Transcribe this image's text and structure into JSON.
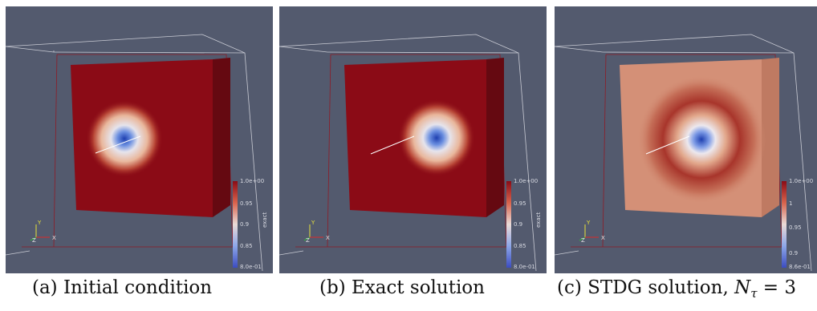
{
  "panels": [
    {
      "id": "a",
      "caption": "(a) Initial condition",
      "colorbar": {
        "max_label": "1.0e+00",
        "ticks": [
          "0.95",
          "0.9",
          "0.85"
        ],
        "min_label": "8.0e-01",
        "title": "exact"
      },
      "axes": {
        "y": "Y",
        "z": "Z",
        "x": "X"
      }
    },
    {
      "id": "b",
      "caption": "(b) Exact solution",
      "colorbar": {
        "max_label": "1.0e+00",
        "ticks": [
          "0.95",
          "0.9",
          "0.85"
        ],
        "min_label": "8.0e-01",
        "title": "exact"
      },
      "axes": {
        "y": "Y",
        "z": "Z",
        "x": "X"
      }
    },
    {
      "id": "c",
      "caption_prefix": "(c) STDG solution, ",
      "caption_symbol": "N",
      "caption_sub": "τ",
      "caption_suffix": " = 3",
      "colorbar": {
        "max_label": "1.0e+00",
        "ticks": [
          "1",
          "0.95",
          "0.9"
        ],
        "min_label": "8.6e-01"
      },
      "axes": {
        "y": "Y",
        "z": "Z",
        "x": "X"
      }
    }
  ],
  "colors": {
    "background": "#535a6e",
    "field_high": "#8b0b16",
    "field_mid": "#f2e0d6",
    "field_low": "#3b4cc0",
    "stdg_face": "#d49077"
  }
}
